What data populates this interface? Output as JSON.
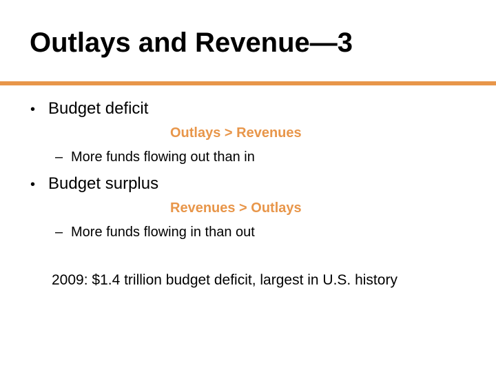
{
  "title": "Outlays and Revenue—3",
  "colors": {
    "accent": "#E8964A",
    "text": "#000000",
    "background": "#FFFFFF"
  },
  "bullets": [
    {
      "label": "Budget deficit",
      "formula": "Outlays > Revenues",
      "sub": "More funds flowing out than in"
    },
    {
      "label": "Budget surplus",
      "formula": "Revenues > Outlays",
      "sub": "More funds flowing in than out"
    }
  ],
  "bullet_glyph": "•",
  "dash_glyph": "–",
  "note": "2009: $1.4 trillion budget deficit, largest in U.S. history"
}
